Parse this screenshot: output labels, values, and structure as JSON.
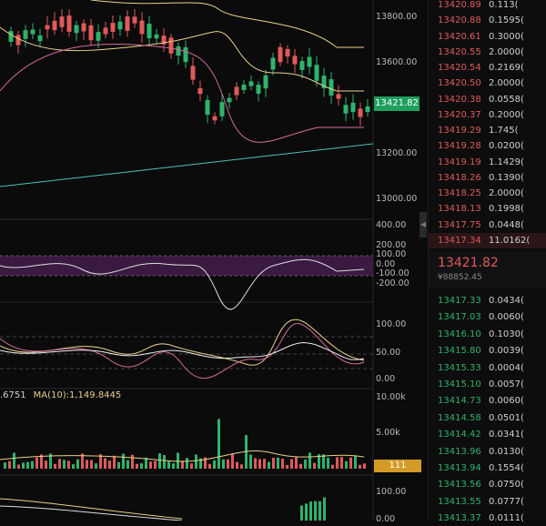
{
  "chart": {
    "price_axis": [
      "13800.00",
      "13600.00",
      "13421.82",
      "13200.00",
      "13000.00"
    ],
    "current_price_tag": "13421.82",
    "cci_axis": [
      "400.00",
      "200.00",
      "100.00",
      "0.00",
      "-100.00",
      "-200.00"
    ],
    "kdj_axis": [
      "100.00",
      "50.00",
      "0.00"
    ],
    "volume_axis": [
      "10.00k",
      "5.00k"
    ],
    "volume_tag": "111",
    "bottom_axis": [
      "100.00",
      "0.00"
    ],
    "ma_legend_left": ".6751",
    "ma_legend_right": "MA(10):1,149.8445",
    "scroll_glyph": "◀",
    "colors": {
      "up": "#2fb36c",
      "down": "#e05a5a",
      "ma_yellow": "#e8d08a",
      "ma_pink": "#d36b9b",
      "trend": "#4fc1b0",
      "cci_fill": "#3b1a42"
    }
  },
  "order_book": {
    "asks": [
      {
        "price": "13420.89",
        "qty": "0.113( "
      },
      {
        "price": "13420.88",
        "qty": "0.1595("
      },
      {
        "price": "13420.61",
        "qty": "0.3000("
      },
      {
        "price": "13420.55",
        "qty": "2.0000("
      },
      {
        "price": "13420.54",
        "qty": "0.2169("
      },
      {
        "price": "13420.50",
        "qty": "2.0000("
      },
      {
        "price": "13420.38",
        "qty": "0.0558("
      },
      {
        "price": "13420.37",
        "qty": "0.2000("
      },
      {
        "price": "13419.29",
        "qty": "1.745("
      },
      {
        "price": "13419.28",
        "qty": "0.0200("
      },
      {
        "price": "13419.19",
        "qty": "1.1429("
      },
      {
        "price": "13418.26",
        "qty": "0.1390("
      },
      {
        "price": "13418.25",
        "qty": "2.0000("
      },
      {
        "price": "13418.13",
        "qty": "0.1998("
      },
      {
        "price": "13417.75",
        "qty": "0.0448("
      },
      {
        "price": "13417.34",
        "qty": "11.0162("
      }
    ],
    "last_price": "13421.82",
    "last_price_cny": "¥88852.45",
    "bids": [
      {
        "price": "13417.33",
        "qty": "0.0434("
      },
      {
        "price": "13417.03",
        "qty": "0.0060("
      },
      {
        "price": "13416.10",
        "qty": "0.1030("
      },
      {
        "price": "13415.80",
        "qty": "0.0039("
      },
      {
        "price": "13415.33",
        "qty": "0.0004("
      },
      {
        "price": "13415.10",
        "qty": "0.0057("
      },
      {
        "price": "13414.73",
        "qty": "0.0060("
      },
      {
        "price": "13414.58",
        "qty": "0.0501("
      },
      {
        "price": "13414.42",
        "qty": "0.0341("
      },
      {
        "price": "13413.96",
        "qty": "0.0130("
      },
      {
        "price": "13413.94",
        "qty": "0.1554("
      },
      {
        "price": "13413.56",
        "qty": "0.0750("
      },
      {
        "price": "13413.55",
        "qty": "0.0777("
      },
      {
        "price": "13413.37",
        "qty": "0.0111("
      }
    ]
  }
}
